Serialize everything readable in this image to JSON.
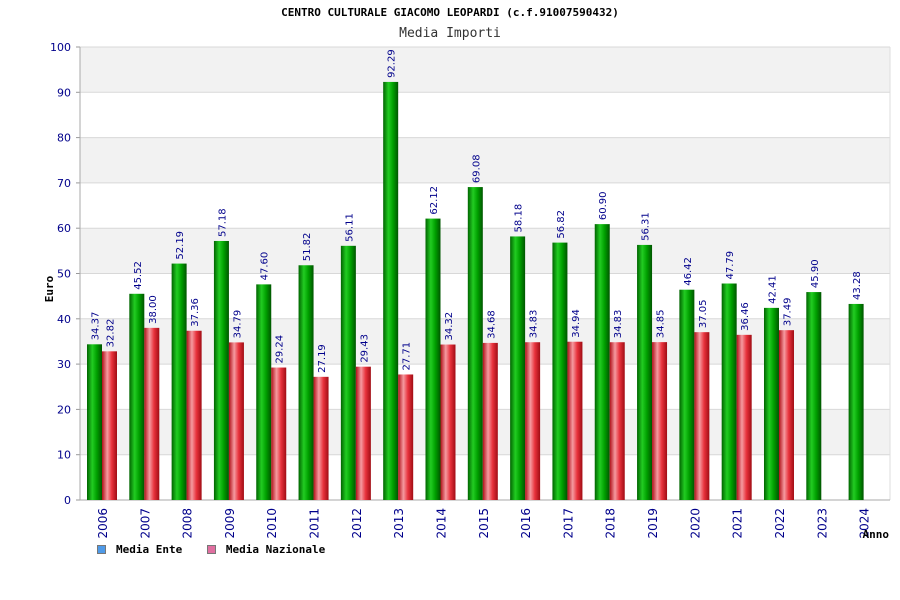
{
  "title": "CENTRO CULTURALE GIACOMO LEOPARDI (c.f.91007590432)",
  "subtitle": "Media Importi",
  "colors": {
    "ente": "#00a800",
    "nazionale": "#e8323c",
    "legend_ente": "#4f9ae8",
    "legend_nazionale": "#e06fa0",
    "band": "#f2f2f2",
    "grid": "#d8d8d8"
  },
  "legend": {
    "ente_label": "Media Ente",
    "nazionale_label": "Media Nazionale"
  },
  "chart_data": {
    "type": "bar",
    "title": "CENTRO CULTURALE GIACOMO LEOPARDI (c.f.91007590432)",
    "subtitle": "Media Importi",
    "xlabel": "Anno",
    "ylabel": "Euro",
    "ylim": [
      0,
      100
    ],
    "yticks": [
      0,
      10,
      20,
      30,
      40,
      50,
      60,
      70,
      80,
      90,
      100
    ],
    "grid": true,
    "legend_position": "bottom-left",
    "categories": [
      "2006",
      "2007",
      "2008",
      "2009",
      "2010",
      "2011",
      "2012",
      "2013",
      "2014",
      "2015",
      "2016",
      "2017",
      "2018",
      "2019",
      "2020",
      "2021",
      "2022",
      "2023",
      "2024"
    ],
    "series": [
      {
        "name": "Media Ente",
        "values": [
          34.37,
          45.52,
          52.19,
          57.18,
          47.6,
          51.82,
          56.11,
          92.29,
          62.12,
          69.08,
          58.18,
          56.82,
          60.9,
          56.31,
          46.42,
          47.79,
          42.41,
          45.9,
          43.28
        ],
        "labels": [
          "34.37",
          "45.52",
          "52.19",
          "57.18",
          "47.60",
          "51.82",
          "56.11",
          "92.29",
          "62.12",
          "69.08",
          "58.18",
          "56.82",
          "60.90",
          "56.31",
          "46.42",
          "47.79",
          "42.41",
          "45.90",
          "43.28"
        ]
      },
      {
        "name": "Media Nazionale",
        "values": [
          32.82,
          38.0,
          37.36,
          34.79,
          29.24,
          27.19,
          29.43,
          27.71,
          34.32,
          34.68,
          34.83,
          34.94,
          34.83,
          34.85,
          37.05,
          36.46,
          37.49,
          null,
          null
        ],
        "labels": [
          "32.82",
          "38.00",
          "37.36",
          "34.79",
          "29.24",
          "27.19",
          "29.43",
          "27.71",
          "34.32",
          "34.68",
          "34.83",
          "34.94",
          "34.83",
          "34.85",
          "37.05",
          "36.46",
          "37.49",
          "",
          ""
        ]
      }
    ]
  }
}
